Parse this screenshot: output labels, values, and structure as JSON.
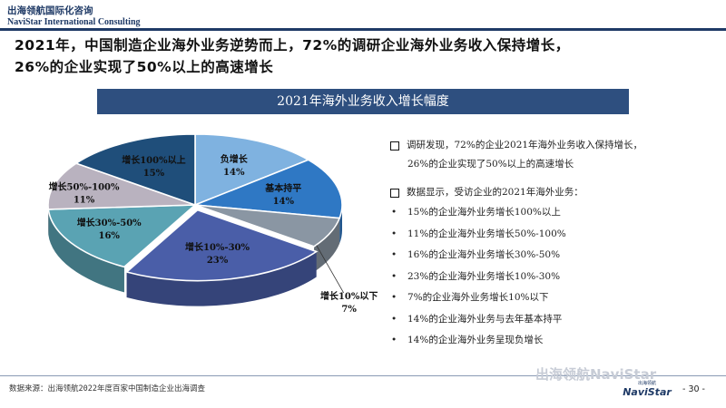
{
  "header": {
    "logo_cn": "出海领航国际化咨询",
    "logo_en": "NaviStar International Consulting"
  },
  "headline": {
    "line1": "2021年，中国制造企业海外业务逆势而上，72%的调研企业海外业务收入保持增长，",
    "line2": "26%的企业实现了50%以上的高速增长"
  },
  "section_title": "2021年海外业务收入增长幅度",
  "chart_data": {
    "type": "pie",
    "title": "2021年海外业务收入增长幅度",
    "legend": "none",
    "slices": [
      {
        "label": "负增长",
        "value": 14,
        "value_text": "14%",
        "color": "#7fb2e0"
      },
      {
        "label": "基本持平",
        "value": 14,
        "value_text": "14%",
        "color": "#2f78c4"
      },
      {
        "label": "增长10%以下",
        "value": 7,
        "value_text": "7%",
        "color": "#8a96a3"
      },
      {
        "label": "增长10%-30%",
        "value": 23,
        "value_text": "23%",
        "color": "#4a5ea8"
      },
      {
        "label": "增长30%-50%",
        "value": 16,
        "value_text": "16%",
        "color": "#5aa3b3"
      },
      {
        "label": "增长50%-100%",
        "value": 11,
        "value_text": "11%",
        "color": "#b9b2bf"
      },
      {
        "label": "增长100%以上",
        "value": 15,
        "value_text": "15%",
        "color": "#1f4e7a"
      }
    ]
  },
  "notes": {
    "finding_line1": "调研发现，72%的企业2021年海外业务收入保持增长，",
    "finding_line2": "26%的企业实现了50%以上的高速增长",
    "data_intro": "数据显示，受访企业的2021年海外业务：",
    "bullet_symbol": "•",
    "bullets": [
      "15%的企业海外业务增长100%以上",
      "11%的企业海外业务增长50%-100%",
      "16%的企业海外业务增长30%-50%",
      "23%的企业海外业务增长10%-30%",
      "7%的企业海外业务增长10%以下",
      "14%的企业海外业务与去年基本持平",
      "14%的企业海外业务呈现负增长"
    ]
  },
  "footer": {
    "source": "数据来源：出海领航2022年度百家中国制造企业出海调查",
    "wechat_watermark": "出海领航NaviStar",
    "brand_top": "出海领航",
    "brand_name": "NaviStar",
    "page_number": "- 30 -"
  }
}
